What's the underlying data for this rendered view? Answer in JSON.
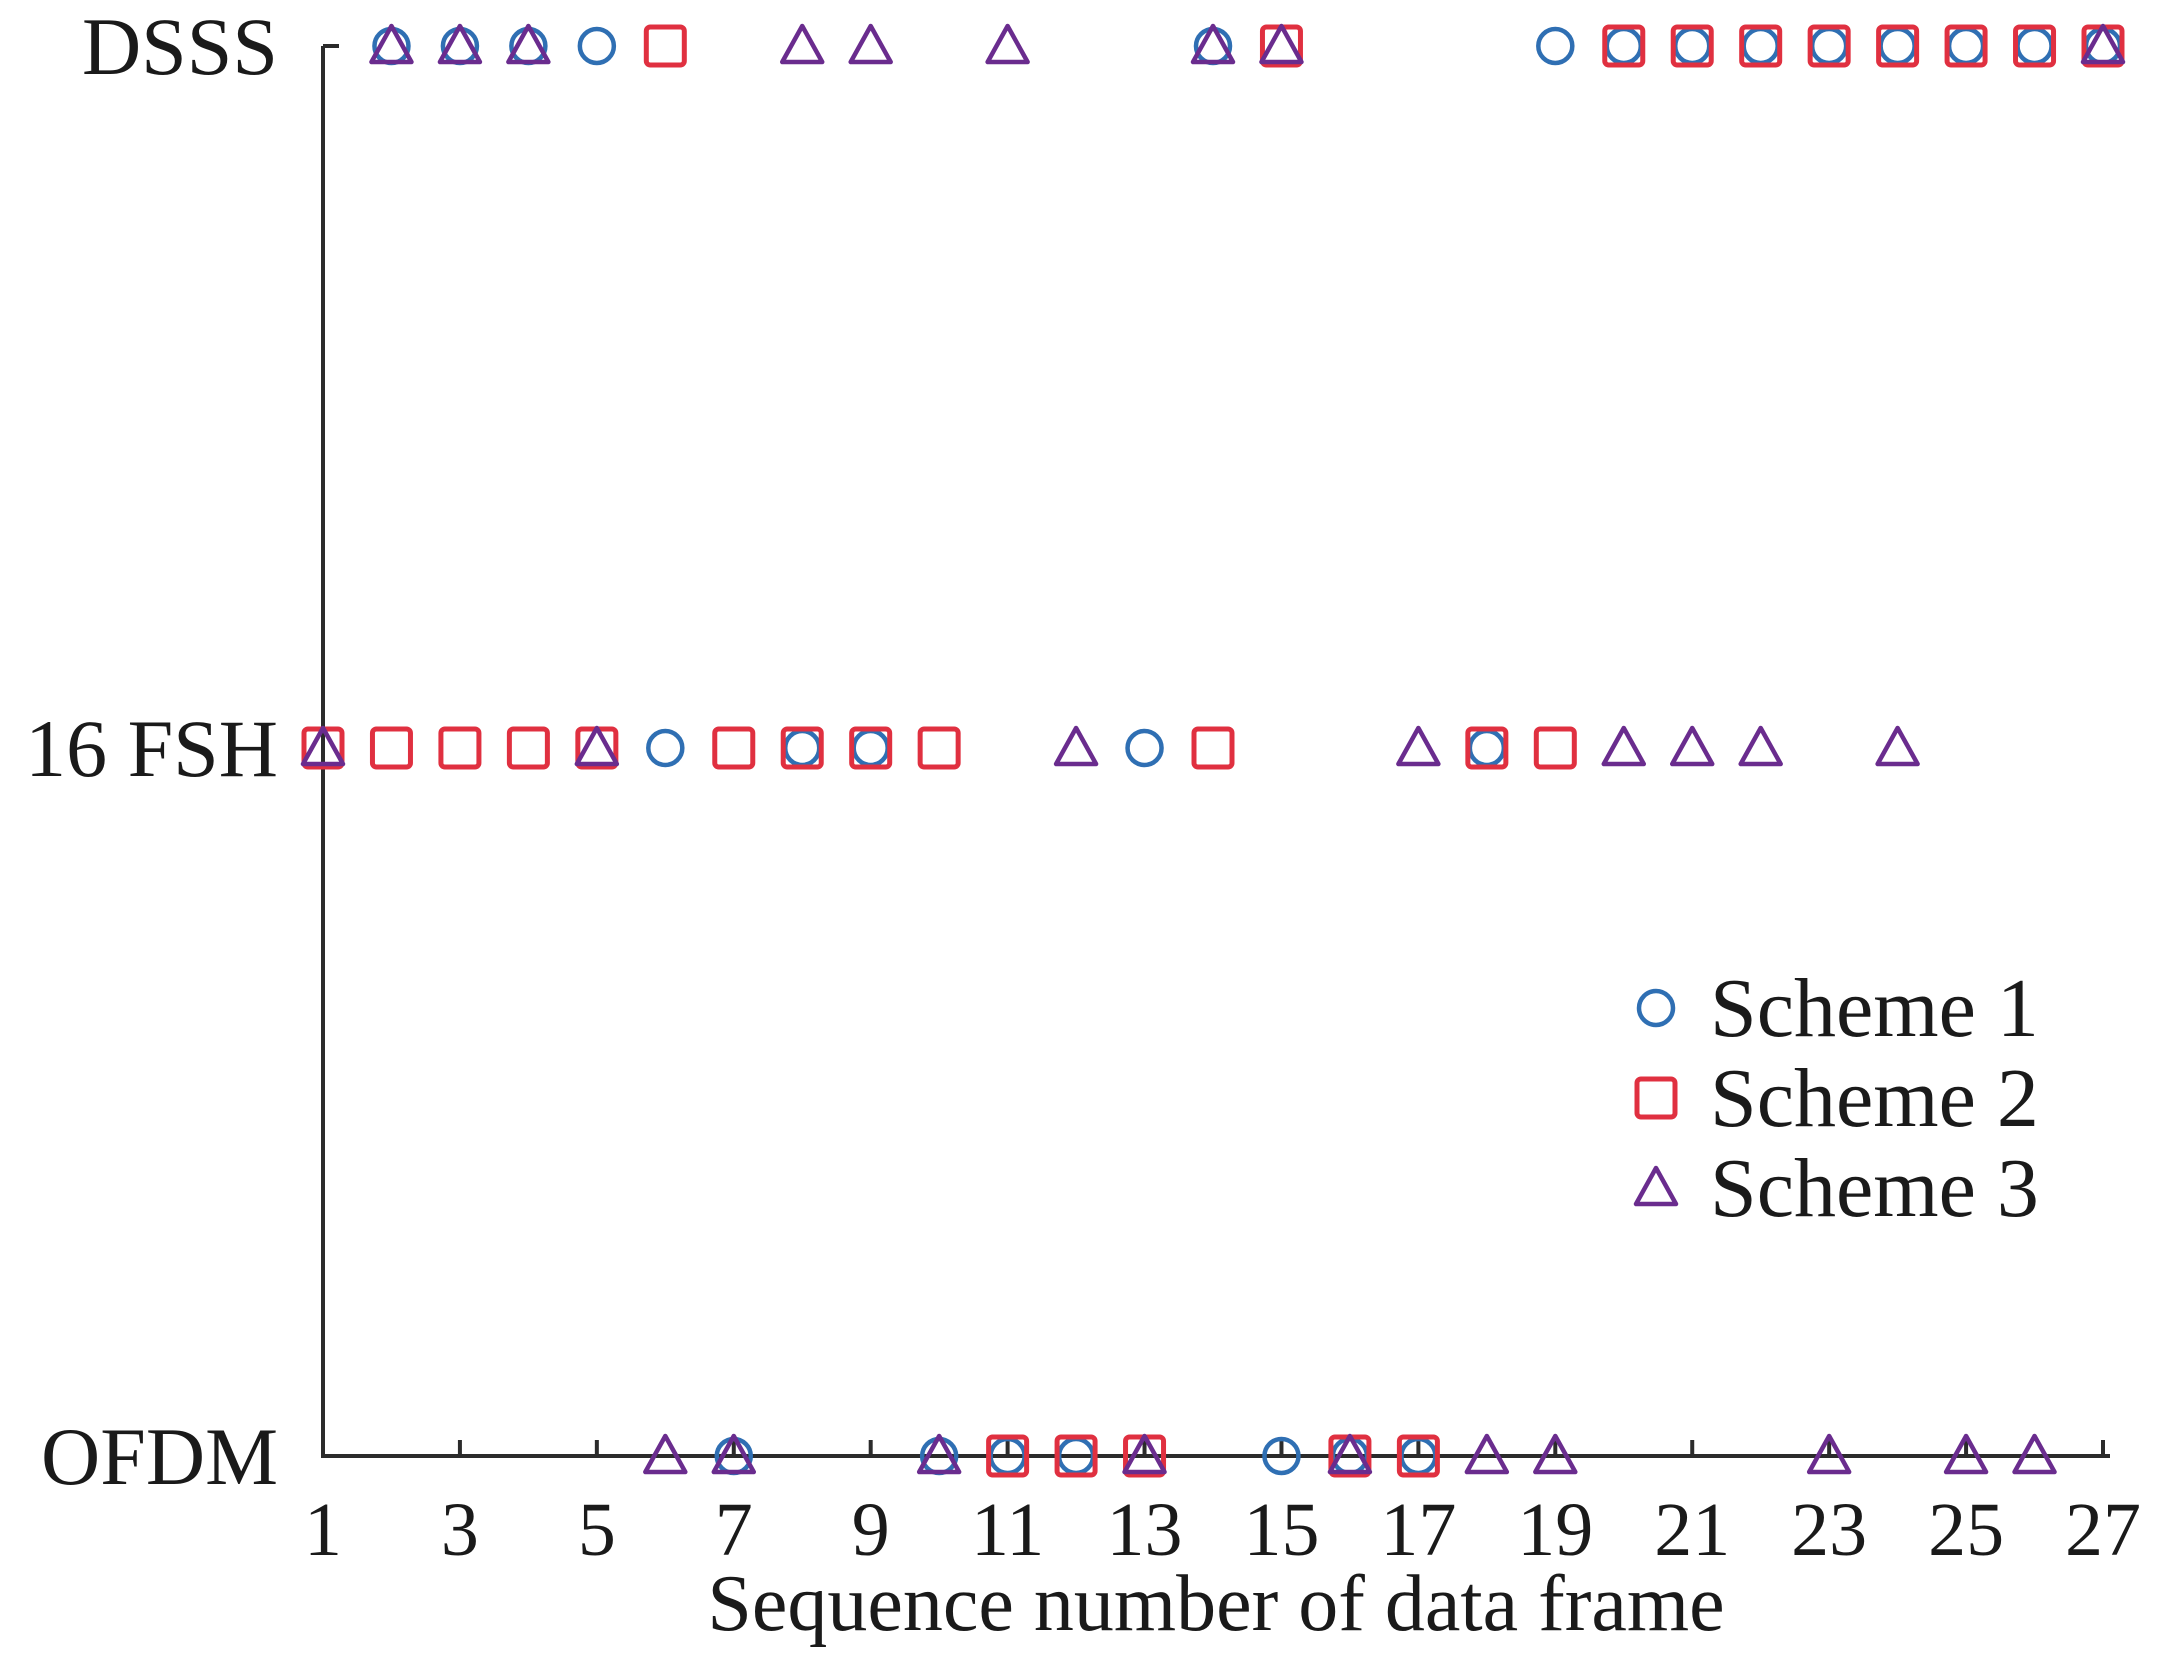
{
  "chart_data": {
    "type": "scatter",
    "title": "",
    "xlabel": "Sequence number of data frame",
    "ylabel": "",
    "xlim": [
      1,
      27
    ],
    "x_ticks": [
      "1",
      "3",
      "5",
      "7",
      "9",
      "11",
      "13",
      "15",
      "17",
      "19",
      "21",
      "23",
      "25",
      "27"
    ],
    "y_categories": [
      "OFDM",
      "16 FSH",
      "DSSS"
    ],
    "grid": false,
    "legend_position": "right",
    "series": [
      {
        "name": "Scheme 1",
        "marker": "circle",
        "color": "#2f6fb3",
        "points": [
          {
            "x": 2,
            "y": "DSSS"
          },
          {
            "x": 3,
            "y": "DSSS"
          },
          {
            "x": 4,
            "y": "DSSS"
          },
          {
            "x": 5,
            "y": "DSSS"
          },
          {
            "x": 6,
            "y": "16 FSH"
          },
          {
            "x": 7,
            "y": "OFDM"
          },
          {
            "x": 8,
            "y": "16 FSH"
          },
          {
            "x": 9,
            "y": "16 FSH"
          },
          {
            "x": 10,
            "y": "OFDM"
          },
          {
            "x": 11,
            "y": "OFDM"
          },
          {
            "x": 12,
            "y": "OFDM"
          },
          {
            "x": 13,
            "y": "16 FSH"
          },
          {
            "x": 14,
            "y": "DSSS"
          },
          {
            "x": 15,
            "y": "OFDM"
          },
          {
            "x": 16,
            "y": "OFDM"
          },
          {
            "x": 17,
            "y": "OFDM"
          },
          {
            "x": 18,
            "y": "16 FSH"
          },
          {
            "x": 19,
            "y": "DSSS"
          },
          {
            "x": 20,
            "y": "DSSS"
          },
          {
            "x": 21,
            "y": "DSSS"
          },
          {
            "x": 22,
            "y": "DSSS"
          },
          {
            "x": 23,
            "y": "DSSS"
          },
          {
            "x": 24,
            "y": "DSSS"
          },
          {
            "x": 25,
            "y": "DSSS"
          },
          {
            "x": 26,
            "y": "DSSS"
          },
          {
            "x": 27,
            "y": "DSSS"
          }
        ]
      },
      {
        "name": "Scheme 2",
        "marker": "square",
        "color": "#e03040",
        "points": [
          {
            "x": 1,
            "y": "16 FSH"
          },
          {
            "x": 2,
            "y": "16 FSH"
          },
          {
            "x": 3,
            "y": "16 FSH"
          },
          {
            "x": 4,
            "y": "16 FSH"
          },
          {
            "x": 5,
            "y": "16 FSH"
          },
          {
            "x": 6,
            "y": "DSSS"
          },
          {
            "x": 7,
            "y": "16 FSH"
          },
          {
            "x": 8,
            "y": "16 FSH"
          },
          {
            "x": 9,
            "y": "16 FSH"
          },
          {
            "x": 10,
            "y": "16 FSH"
          },
          {
            "x": 11,
            "y": "OFDM"
          },
          {
            "x": 12,
            "y": "OFDM"
          },
          {
            "x": 13,
            "y": "OFDM"
          },
          {
            "x": 14,
            "y": "16 FSH"
          },
          {
            "x": 15,
            "y": "DSSS"
          },
          {
            "x": 16,
            "y": "OFDM"
          },
          {
            "x": 17,
            "y": "OFDM"
          },
          {
            "x": 18,
            "y": "16 FSH"
          },
          {
            "x": 19,
            "y": "16 FSH"
          },
          {
            "x": 20,
            "y": "DSSS"
          },
          {
            "x": 21,
            "y": "DSSS"
          },
          {
            "x": 22,
            "y": "DSSS"
          },
          {
            "x": 23,
            "y": "DSSS"
          },
          {
            "x": 24,
            "y": "DSSS"
          },
          {
            "x": 25,
            "y": "DSSS"
          },
          {
            "x": 26,
            "y": "DSSS"
          },
          {
            "x": 27,
            "y": "DSSS"
          }
        ]
      },
      {
        "name": "Scheme 3",
        "marker": "triangle",
        "color": "#6a2c8e",
        "points": [
          {
            "x": 1,
            "y": "16 FSH"
          },
          {
            "x": 2,
            "y": "DSSS"
          },
          {
            "x": 3,
            "y": "DSSS"
          },
          {
            "x": 4,
            "y": "DSSS"
          },
          {
            "x": 5,
            "y": "16 FSH"
          },
          {
            "x": 6,
            "y": "OFDM"
          },
          {
            "x": 7,
            "y": "OFDM"
          },
          {
            "x": 8,
            "y": "DSSS"
          },
          {
            "x": 9,
            "y": "DSSS"
          },
          {
            "x": 10,
            "y": "OFDM"
          },
          {
            "x": 11,
            "y": "DSSS"
          },
          {
            "x": 12,
            "y": "16 FSH"
          },
          {
            "x": 13,
            "y": "OFDM"
          },
          {
            "x": 14,
            "y": "DSSS"
          },
          {
            "x": 15,
            "y": "DSSS"
          },
          {
            "x": 16,
            "y": "OFDM"
          },
          {
            "x": 17,
            "y": "16 FSH"
          },
          {
            "x": 18,
            "y": "OFDM"
          },
          {
            "x": 19,
            "y": "OFDM"
          },
          {
            "x": 20,
            "y": "16 FSH"
          },
          {
            "x": 21,
            "y": "16 FSH"
          },
          {
            "x": 22,
            "y": "16 FSH"
          },
          {
            "x": 23,
            "y": "OFDM"
          },
          {
            "x": 24,
            "y": "16 FSH"
          },
          {
            "x": 25,
            "y": "OFDM"
          },
          {
            "x": 26,
            "y": "OFDM"
          },
          {
            "x": 27,
            "y": "DSSS"
          }
        ]
      }
    ]
  }
}
